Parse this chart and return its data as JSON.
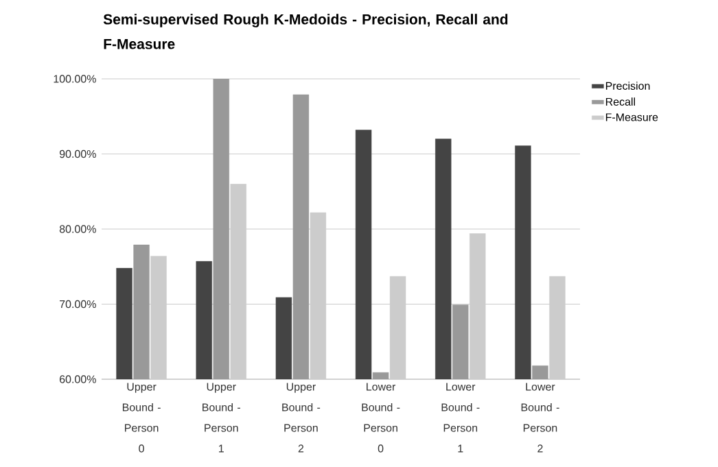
{
  "chart_data": {
    "type": "bar",
    "title": "Semi-supervised Rough K-Medoids - Precision, Recall and F-Measure",
    "categories": [
      "Upper Bound - Person 0",
      "Upper Bound - Person 1",
      "Upper Bound - Person 2",
      "Lower Bound - Person 0",
      "Lower Bound - Person 1",
      "Lower Bound - Person 2"
    ],
    "series": [
      {
        "name": "Precision",
        "color": "#444444",
        "values": [
          74.8,
          75.7,
          70.9,
          93.2,
          92.0,
          91.1
        ]
      },
      {
        "name": "Recall",
        "color": "#999999",
        "values": [
          77.9,
          100,
          97.9,
          60.9,
          69.9,
          61.8
        ]
      },
      {
        "name": "F-Measure",
        "color": "#cccccc",
        "values": [
          76.4,
          86.0,
          82.2,
          73.7,
          79.4,
          73.7
        ]
      }
    ],
    "ylim": [
      60,
      100
    ],
    "yticks": [
      {
        "value": 60,
        "label": "60.00%"
      },
      {
        "value": 70,
        "label": "70.00%"
      },
      {
        "value": 80,
        "label": "80.00%"
      },
      {
        "value": 90,
        "label": "90.00%"
      },
      {
        "value": 100,
        "label": "100.00%"
      }
    ],
    "grid": "y",
    "legend": "right"
  }
}
